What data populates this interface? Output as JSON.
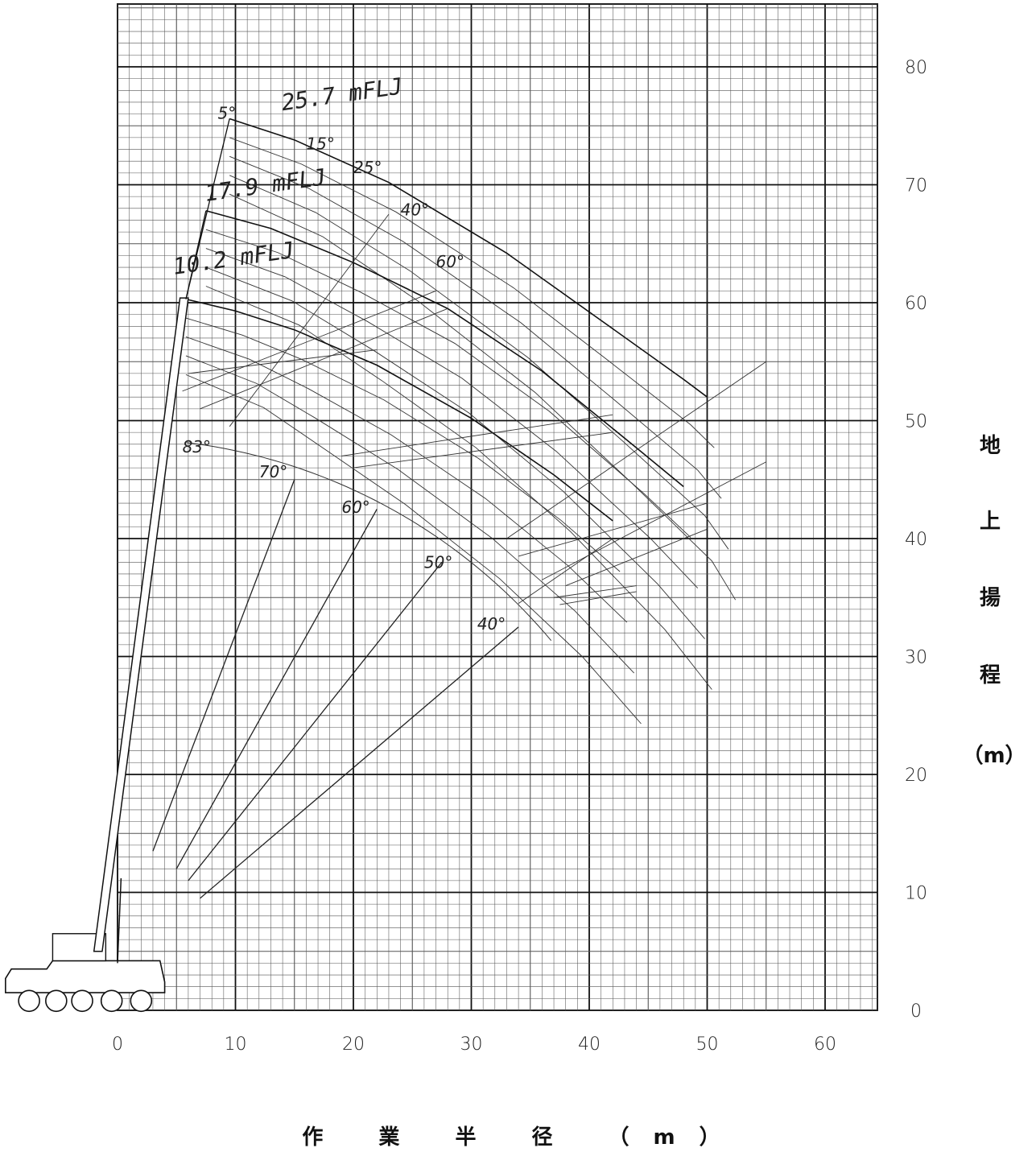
{
  "chart_data": {
    "type": "line",
    "title": "",
    "xlabel": "作 業 半 径 （m）",
    "ylabel_chars": [
      "地",
      "上",
      "揚",
      "程",
      "（m）"
    ],
    "xlim": [
      -10,
      64
    ],
    "ylim": [
      0,
      86
    ],
    "x_ticks": [
      0,
      10,
      20,
      30,
      40,
      50,
      60
    ],
    "y_ticks": [
      0,
      10,
      20,
      30,
      40,
      50,
      60,
      70,
      80
    ],
    "grid": true,
    "main_boom_angle_labels": [
      "83°",
      "70°",
      "60°",
      "50°",
      "40°"
    ],
    "jib_offset_labels": [
      "5°",
      "15°",
      "25°",
      "40°",
      "60°"
    ],
    "jib_length_labels": [
      "25.7 mFLJ",
      "17.9 mFLJ",
      "10.2 mFLJ"
    ],
    "series": [
      {
        "name": "25.7 mFLJ",
        "values": [
          [
            9.5,
            75.6
          ],
          [
            15,
            73.8
          ],
          [
            23,
            70.2
          ],
          [
            33,
            64.2
          ],
          [
            41,
            58.5
          ],
          [
            48,
            53.5
          ],
          [
            50,
            52
          ]
        ]
      },
      {
        "name": "17.9 mFLJ",
        "values": [
          [
            7.5,
            67.8
          ],
          [
            13,
            66.3
          ],
          [
            20,
            63.4
          ],
          [
            28,
            59.5
          ],
          [
            36,
            54.2
          ],
          [
            44,
            47.7
          ],
          [
            48,
            44.4
          ]
        ]
      },
      {
        "name": "10.2 mFLJ",
        "values": [
          [
            5.8,
            60.3
          ],
          [
            10,
            59.3
          ],
          [
            15,
            57.7
          ],
          [
            22,
            54.7
          ],
          [
            30,
            50.2
          ],
          [
            37,
            45.4
          ],
          [
            42,
            41.5
          ]
        ]
      }
    ],
    "annotations": [
      {
        "text": "5°",
        "x": 8.5,
        "y": 75.6
      },
      {
        "text": "15°",
        "x": 16,
        "y": 73
      },
      {
        "text": "25°",
        "x": 20,
        "y": 71
      },
      {
        "text": "40°",
        "x": 24,
        "y": 67.4
      },
      {
        "text": "60°",
        "x": 27,
        "y": 63
      },
      {
        "text": "83°",
        "x": 5.5,
        "y": 47.3
      },
      {
        "text": "70°",
        "x": 12,
        "y": 45.2
      },
      {
        "text": "60°",
        "x": 19,
        "y": 42.2
      },
      {
        "text": "50°",
        "x": 26,
        "y": 37.5
      },
      {
        "text": "40°",
        "x": 30.5,
        "y": 32.3
      }
    ]
  }
}
